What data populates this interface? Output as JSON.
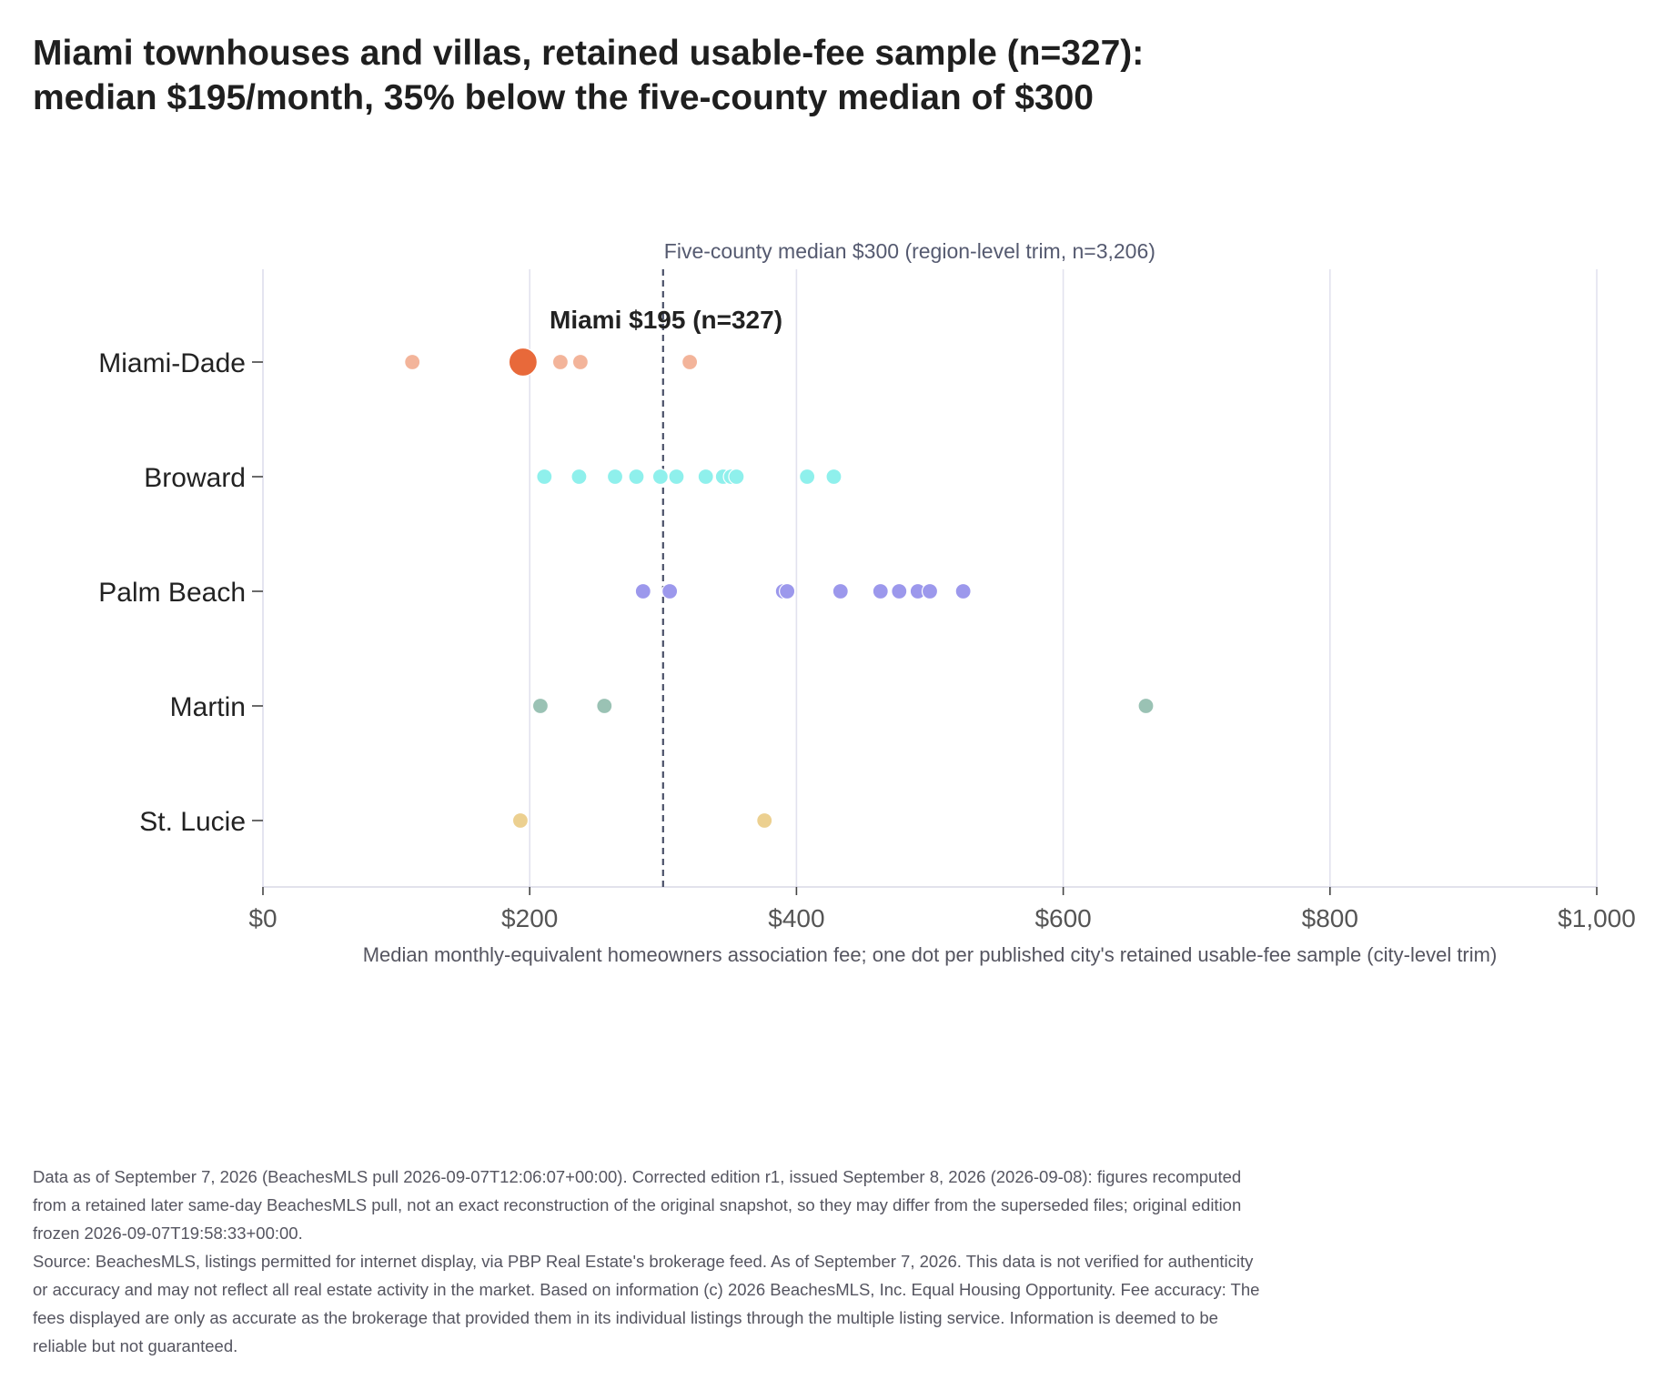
{
  "title_lines": [
    "Miami townhouses and villas, retained usable-fee sample (n=327):",
    "median $195/month, 35% below the five-county median of $300"
  ],
  "footnotes": [
    "Data as of September 7, 2026 (BeachesMLS pull 2026-09-07T12:06:07+00:00). Corrected edition r1, issued September 8, 2026 (2026-09-08): figures recomputed from a retained later same-day BeachesMLS pull, not an exact reconstruction of the original snapshot, so they may differ from the superseded files; original edition frozen 2026-09-07T19:58:33+00:00.",
    "Source: BeachesMLS, listings permitted for internet display, via PBP Real Estate's brokerage feed. As of September 7, 2026. This data is not verified for authenticity or accuracy and may not reflect all real estate activity in the market. Based on information (c) 2026 BeachesMLS, Inc. Equal Housing Opportunity. Fee accuracy: The fees displayed are only as accurate as the brokerage that provided them in its individual listings through the multiple listing service. Information is deemed to be reliable but not guaranteed."
  ],
  "chart_data": {
    "type": "scatter",
    "xlabel": "Median monthly-equivalent homeowners association fee; one dot per published city's retained usable-fee sample (city-level trim)",
    "xlim": [
      0,
      1000
    ],
    "xticks": [
      0,
      200,
      400,
      600,
      800,
      1000
    ],
    "xtick_labels": [
      "$0",
      "$200",
      "$400",
      "$600",
      "$800",
      "$1,000"
    ],
    "grid": true,
    "categories": [
      "Miami-Dade",
      "Broward",
      "Palm Beach",
      "Martin",
      "St. Lucie"
    ],
    "reference_line": {
      "value": 300,
      "label": "Five-county median $300 (region-level trim, n=3,206)",
      "color": "#4a5068"
    },
    "series": [
      {
        "category": "Miami-Dade",
        "color": "#f3b49a",
        "values": [
          112,
          223,
          238,
          320
        ]
      },
      {
        "category": "Broward",
        "color": "#8ff0ec",
        "values": [
          211,
          237,
          264,
          280,
          298,
          310,
          332,
          345,
          351,
          355,
          408,
          428
        ]
      },
      {
        "category": "Palm Beach",
        "color": "#9c98ec",
        "values": [
          285,
          305,
          390,
          393,
          433,
          463,
          477,
          491,
          500,
          525
        ]
      },
      {
        "category": "Martin",
        "color": "#9ac2b4",
        "values": [
          208,
          256,
          662
        ]
      },
      {
        "category": "St. Lucie",
        "color": "#ecd090",
        "values": [
          193,
          376
        ]
      }
    ],
    "highlight": {
      "category": "Miami-Dade",
      "value": 195,
      "color": "#e8693a",
      "label": "Miami $195 (n=327)"
    }
  }
}
